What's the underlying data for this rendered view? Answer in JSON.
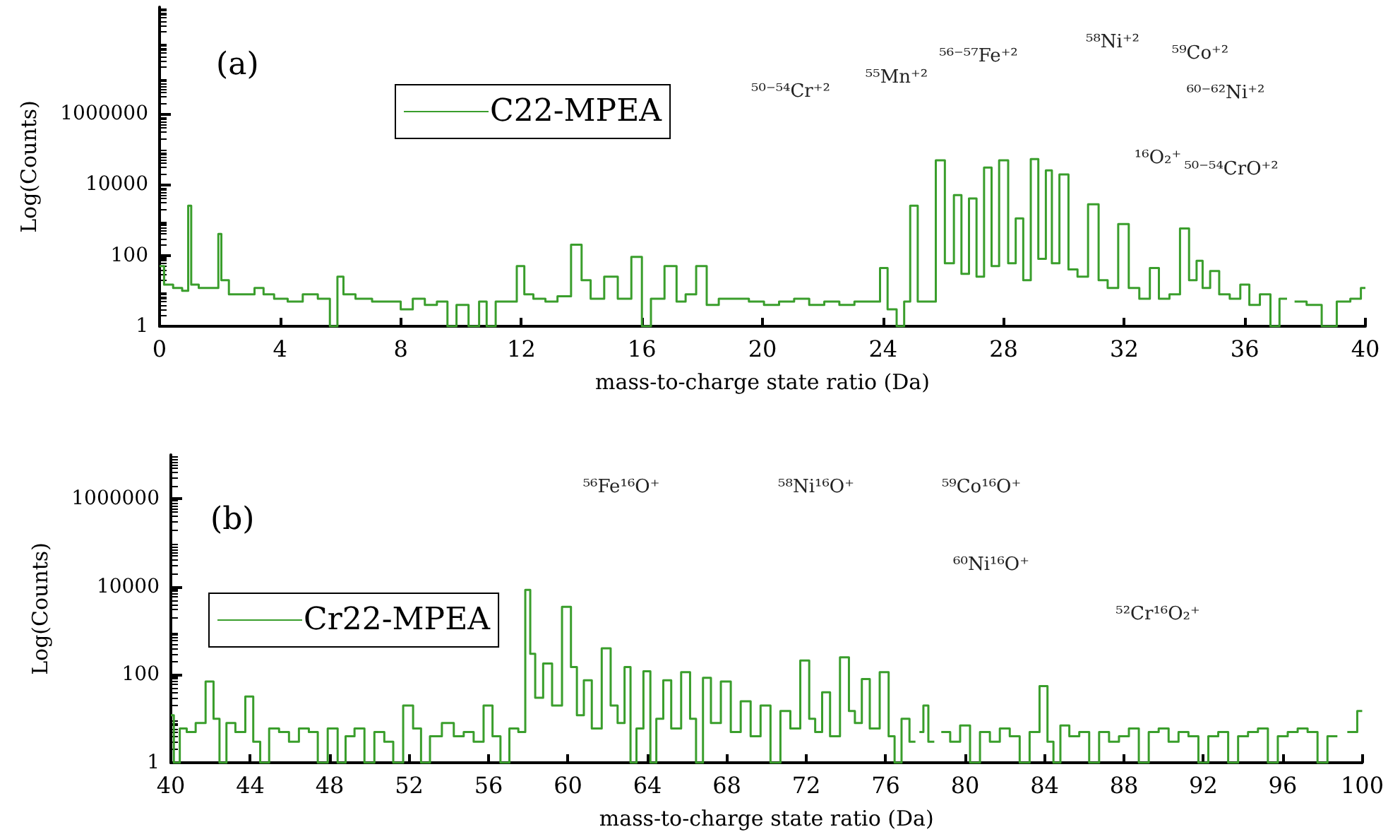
{
  "chart_data": [
    {
      "type": "step",
      "xlabel": "mass-to-charge state ratio (Da)",
      "ylabel": "Log(Counts)",
      "log": "y",
      "grid": false,
      "legend": "top",
      "marker": "none",
      "xlim": [
        0,
        40
      ],
      "xticks": [
        0,
        4,
        8,
        12,
        16,
        20,
        24,
        28,
        32,
        36,
        40
      ],
      "ylim": [
        1,
        1000000000
      ],
      "yticks": [
        1,
        100,
        10000,
        1000000
      ],
      "annotations": [
        "(a)",
        "⁵⁰⁻⁵⁴Cr⁺²",
        "⁵⁵Mn⁺²",
        "⁵⁶⁻⁵⁷Fe⁺²",
        "⁵⁸Ni⁺²",
        "⁵⁹Co⁺²",
        "⁶⁰⁻⁶²Ni⁺²",
        "¹⁶O₂⁺",
        "⁵⁰⁻⁵⁴CrO⁺²"
      ],
      "series": [
        {
          "name": "C22-MPEA",
          "color": "#3a9e2c",
          "x": [
            0,
            0.3,
            0.6,
            0.9,
            1.0,
            1.1,
            1.5,
            1.9,
            2.0,
            2.1,
            2.5,
            3,
            3.3,
            3.6,
            4,
            4.5,
            5,
            5.5,
            5.8,
            6.0,
            6.2,
            6.8,
            7.3,
            7.8,
            8.2,
            8.6,
            9,
            9.4,
            9.7,
            10,
            10.5,
            10.7,
            11,
            11.3,
            11.7,
            12.0,
            12.2,
            12.6,
            13,
            13.4,
            13.9,
            14.1,
            14.5,
            15,
            15.4,
            15.9,
            16.1,
            16.5,
            17.0,
            17.3,
            17.6,
            18.0,
            18.3,
            18.8,
            19.3,
            19.8,
            20.3,
            20.8,
            21.3,
            21.8,
            22.3,
            22.8,
            23.3,
            23.8,
            24.0,
            24.3,
            24.6,
            24.8,
            25.0,
            25.3,
            25.6,
            25.9,
            26.2,
            26.5,
            26.7,
            27.0,
            27.2,
            27.5,
            27.7,
            28.0,
            28.3,
            28.5,
            28.8,
            29.0,
            29.3,
            29.5,
            29.7,
            30.0,
            30.3,
            30.6,
            31.0,
            31.3,
            31.6,
            32.0,
            32.3,
            32.7,
            33.0,
            33.3,
            33.7,
            34.0,
            34.3,
            34.5,
            34.7,
            35.0,
            35.3,
            35.7,
            36.0,
            36.3,
            36.7,
            37.0,
            37.3,
            37.5,
            37.8,
            38.3,
            38.8,
            39.3,
            39.7,
            40
          ],
          "values": [
            50,
            15,
            12,
            10,
            2500,
            15,
            12,
            12,
            400,
            20,
            8,
            8,
            12,
            8,
            6,
            5,
            8,
            6,
            1,
            25,
            8,
            6,
            5,
            5,
            3,
            6,
            4,
            5,
            1,
            4,
            1,
            5,
            1,
            5,
            5,
            50,
            8,
            6,
            5,
            7,
            200,
            20,
            6,
            25,
            6,
            90,
            1,
            6,
            50,
            5,
            8,
            50,
            4,
            6,
            6,
            5,
            4,
            5,
            6,
            4,
            5,
            4,
            5,
            5,
            44,
            3,
            1,
            5,
            2500,
            5,
            5,
            48000,
            60,
            5000,
            30,
            4000,
            25,
            30000,
            50,
            48000,
            60,
            1100,
            20,
            52000,
            80,
            25000,
            60,
            19000,
            40,
            25,
            2750,
            20,
            12,
            760,
            12,
            6,
            44,
            6,
            8,
            575,
            20,
            70,
            12,
            36,
            8,
            6,
            15,
            4,
            8,
            1,
            6,
            null,
            5,
            4,
            1,
            5,
            6,
            12
          ]
        }
      ]
    },
    {
      "type": "step",
      "xlabel": "mass-to-charge state ratio (Da)",
      "ylabel": "Log(Counts)",
      "log": "y",
      "grid": false,
      "legend": "left",
      "marker": "none",
      "xlim": [
        40,
        100
      ],
      "xticks": [
        40,
        44,
        48,
        52,
        56,
        60,
        64,
        68,
        72,
        76,
        80,
        84,
        88,
        92,
        96,
        100
      ],
      "ylim": [
        1,
        10000000
      ],
      "yticks": [
        1,
        100,
        10000,
        1000000
      ],
      "annotations": [
        "(b)",
        "⁵⁶Fe¹⁶O⁺",
        "⁵⁸Ni¹⁶O⁺",
        "⁵⁹Co¹⁶O⁺",
        "⁶⁰Ni¹⁶O⁺",
        "⁵²Cr¹⁶O₂⁺"
      ],
      "series": [
        {
          "name": "Cr22-MPEA",
          "color": "#3a9e2c",
          "x": [
            40,
            40.3,
            40.6,
            41,
            41.5,
            42,
            42.3,
            42.6,
            43,
            43.5,
            44,
            44.3,
            44.7,
            45.2,
            45.7,
            46.2,
            46.7,
            47.2,
            47.6,
            48.2,
            48.6,
            49,
            49.5,
            50,
            50.5,
            51,
            51.4,
            52,
            52.4,
            52.8,
            53.3,
            54,
            54.5,
            55,
            55.5,
            56,
            56.4,
            56.8,
            57.3,
            57.7,
            58,
            58.2,
            58.5,
            59,
            59.4,
            60,
            60.3,
            60.6,
            61,
            61.4,
            62,
            62.3,
            62.7,
            63,
            63.3,
            63.6,
            64,
            64.3,
            64.6,
            65,
            65.4,
            66,
            66.3,
            66.6,
            67,
            67.4,
            68,
            68.4,
            69,
            69.4,
            70,
            70.4,
            71,
            71.4,
            72,
            72.3,
            72.6,
            73,
            73.4,
            74,
            74.3,
            74.6,
            75,
            75.4,
            76,
            76.3,
            76.6,
            77,
            77.4,
            77.6,
            77.8,
            78,
            78.3,
            78.6,
            79,
            79.5,
            80,
            80.5,
            81,
            81.5,
            82,
            82.5,
            83,
            83.5,
            84,
            84.3,
            84.6,
            85,
            85.5,
            86,
            86.5,
            87,
            87.5,
            88,
            88.5,
            89,
            89.5,
            90,
            90.5,
            91,
            91.5,
            92,
            92.5,
            93,
            93.5,
            94,
            94.5,
            95,
            95.5,
            96,
            96.5,
            97,
            97.5,
            98,
            98.5,
            99,
            99.5,
            100
          ],
          "values": [
            12,
            1,
            6,
            5,
            8,
            70,
            10,
            1,
            8,
            5,
            32,
            3,
            1,
            6,
            5,
            3,
            6,
            5,
            1,
            6,
            1,
            4,
            6,
            1,
            5,
            3,
            1,
            20,
            6,
            1,
            4,
            8,
            4,
            5,
            3,
            20,
            4,
            1,
            6,
            5,
            8500,
            300,
            30,
            180,
            20,
            3500,
            150,
            12,
            75,
            6,
            400,
            20,
            8,
            150,
            1,
            6,
            120,
            1,
            10,
            75,
            6,
            115,
            10,
            1,
            85,
            8,
            70,
            5,
            25,
            4,
            20,
            1,
            15,
            6,
            210,
            10,
            5,
            40,
            4,
            250,
            15,
            8,
            80,
            6,
            115,
            4,
            1,
            10,
            3,
            null,
            5,
            20,
            3,
            null,
            5,
            3,
            7,
            1,
            5,
            3,
            6,
            4,
            1,
            5,
            55,
            3,
            1,
            7,
            4,
            5,
            1,
            5,
            3,
            4,
            6,
            1,
            5,
            6,
            3,
            5,
            4,
            1,
            4,
            5,
            1,
            4,
            5,
            6,
            1,
            4,
            5,
            6,
            5,
            1,
            4,
            null,
            5,
            15
          ]
        }
      ]
    }
  ]
}
